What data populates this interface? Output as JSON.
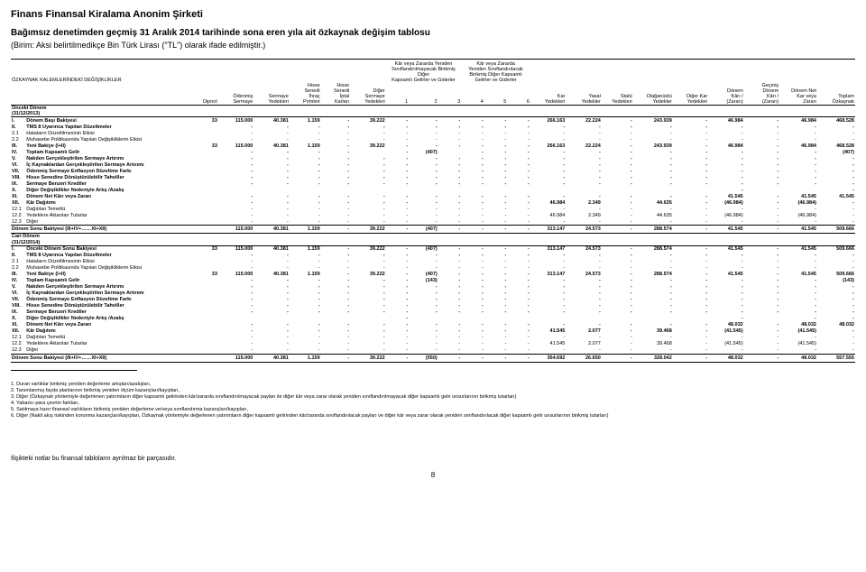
{
  "company": "Finans Finansal Kiralama Anonim Şirketi",
  "title": "Bağımsız denetimden geçmiş 31 Aralık 2014 tarihinde sona eren yıla ait özkaynak değişim tablosu",
  "subtitle": "(Birim: Aksi belirtilmedikçe Bin Türk Lirası (\"TL\") olarak ifade edilmiştir.)",
  "hdr": {
    "ozkalem": "ÖZKAYNAK KALEMLERİNDEKİ DEĞİŞİKLİKLER",
    "g1": "Kâr veya Zararda Yeniden\nSınıflandırılmayacak Birikmiş Diğer\nKapsamlı Gelirler ve Giderler",
    "g2": "Kâr veya Zararda\nYeniden Sınıflandırılacak\nBirikmiş Diğer Kapsamlı\nGelirler ve Giderler",
    "dipnot": "Dipnot",
    "c1": "Ödenmiş\nSermaye",
    "c2": "Sermaye\nYedekleri",
    "c3": "Hisse\nSenedi\nİhraç\nPrimleri",
    "c4": "Hisse\nSenedi\nİptal\nKarları",
    "c5": "Diğer\nSermaye\nYedekleri",
    "c6": "1",
    "c7": "2",
    "c8": "3",
    "c9": "4",
    "c10": "5",
    "c11": "6",
    "c12": "Kar\nYedekleri",
    "c13": "Yasal\nYedekler",
    "c14": "Statü\nYedekleri",
    "c15": "Olağanüstü\nYedekler",
    "c16": "Diğer Kar\nYedekleri",
    "c17": "Dönem\nKârı /\n(Zararı)",
    "c18": "Geçmiş\nDönem\nKârı /\n(Zararı)",
    "c19": "Dönem Net\nKar veya\nZararı",
    "c20": "Toplam\nÖzkaynak",
    "onceki": "Önceki Dönem\n(31/12/2013)",
    "cari": "Cari Dönem\n(31/12/2014)"
  },
  "rowsA": [
    {
      "rn": "I.",
      "lbl": "Dönem Başı Bakiyesi",
      "b": "1",
      "d": "33",
      "v": [
        "115.000",
        "40.381",
        "1.159",
        "-",
        "39.222",
        "-",
        "-",
        "-",
        "-",
        "-",
        "-",
        "266.163",
        "22.224",
        "-",
        "243.939",
        "-",
        "46.984",
        "-",
        "46.984",
        "468.528"
      ]
    },
    {
      "rn": "II.",
      "lbl": "TMS 8 Uyarınca Yapılan Düzeltmeler",
      "b": "1",
      "d": "",
      "v": [
        "-",
        "-",
        "-",
        "-",
        "-",
        "-",
        "-",
        "-",
        "-",
        "-",
        "-",
        "-",
        "-",
        "-",
        "-",
        "-",
        "-",
        "-",
        "-",
        "-"
      ]
    },
    {
      "rn": "2.1",
      "lbl": "Hataların Düzeltilmesinin Etkisi",
      "d": "",
      "v": [
        "-",
        "-",
        "-",
        "-",
        "-",
        "-",
        "-",
        "-",
        "-",
        "-",
        "-",
        "-",
        "-",
        "-",
        "-",
        "-",
        "-",
        "-",
        "-",
        "-"
      ]
    },
    {
      "rn": "2.2",
      "lbl": "Muhasebe Politikasında Yapılan Değişikliklerin Etkisi",
      "d": "",
      "v": [
        "-",
        "-",
        "-",
        "-",
        "-",
        "-",
        "-",
        "-",
        "-",
        "-",
        "-",
        "-",
        "-",
        "-",
        "-",
        "-",
        "-",
        "-",
        "-",
        "-"
      ]
    },
    {
      "rn": "III.",
      "lbl": "Yeni Bakiye (I+II)",
      "b": "1",
      "d": "33",
      "v": [
        "115.000",
        "40.381",
        "1.159",
        "-",
        "39.222",
        "-",
        "-",
        "-",
        "-",
        "-",
        "-",
        "266.163",
        "22.224",
        "-",
        "243.939",
        "-",
        "46.984",
        "-",
        "46.984",
        "468.528"
      ]
    },
    {
      "rn": "IV.",
      "lbl": "Toplam Kapsamlı Gelir",
      "b": "1",
      "d": "",
      "v": [
        "-",
        "-",
        "-",
        "-",
        "",
        "-",
        "(407)",
        "",
        "-",
        "-",
        "-",
        "-",
        "-",
        "-",
        "-",
        "-",
        "-",
        "-",
        "-",
        "(407)"
      ]
    },
    {
      "rn": "V.",
      "lbl": "Nakden Gerçekleştirilen Sermaye Artırımı",
      "b": "1",
      "d": "",
      "v": [
        "-",
        "-",
        "-",
        "-",
        "-",
        "-",
        "-",
        "-",
        "-",
        "-",
        "-",
        "-",
        "-",
        "-",
        "-",
        "-",
        "-",
        "-",
        "-",
        "-"
      ]
    },
    {
      "rn": "VI.",
      "lbl": "İç Kaynaklardan Gerçekleştirilen Sermaye Artırımı",
      "b": "1",
      "d": "",
      "v": [
        "-",
        "-",
        "-",
        "-",
        "-",
        "-",
        "-",
        "-",
        "-",
        "-",
        "-",
        "-",
        "-",
        "-",
        "-",
        "-",
        "-",
        "-",
        "-",
        "-"
      ]
    },
    {
      "rn": "VII.",
      "lbl": "Ödenmiş Sermaye Enflasyon Düzeltme Farkı",
      "b": "1",
      "d": "",
      "v": [
        "-",
        "-",
        "-",
        "-",
        "-",
        "-",
        "-",
        "-",
        "-",
        "-",
        "-",
        "-",
        "-",
        "-",
        "-",
        "-",
        "-",
        "-",
        "-",
        "-"
      ]
    },
    {
      "rn": "VIII.",
      "lbl": "Hisse Senedine Dönüştürülebilir Tahviller",
      "b": "1",
      "d": "",
      "v": [
        "-",
        "-",
        "-",
        "-",
        "-",
        "-",
        "-",
        "-",
        "-",
        "-",
        "-",
        "-",
        "-",
        "-",
        "-",
        "-",
        "-",
        "-",
        "-",
        "-"
      ]
    },
    {
      "rn": "IX.",
      "lbl": "Sermaye Benzeri Krediler",
      "b": "1",
      "d": "",
      "v": [
        "-",
        "-",
        "-",
        "-",
        "-",
        "-",
        "-",
        "-",
        "-",
        "-",
        "-",
        "-",
        "-",
        "-",
        "-",
        "-",
        "-",
        "-",
        "-",
        "-"
      ]
    },
    {
      "rn": "X.",
      "lbl": "Diğer Değişiklikler Nedeniyle Artış /Azalış",
      "b": "1",
      "d": "",
      "v": [
        "",
        "",
        "",
        "",
        "",
        "",
        "",
        "",
        "",
        "",
        "",
        "",
        "",
        "",
        "",
        "",
        "-",
        "",
        "",
        "-"
      ]
    },
    {
      "rn": "XI.",
      "lbl": "Dönem Net Kârı veya Zararı",
      "b": "1",
      "d": "",
      "v": [
        "-",
        "-",
        "-",
        "-",
        "-",
        "-",
        "-",
        "-",
        "-",
        "-",
        "-",
        "-",
        "-",
        "-",
        "-",
        "-",
        "41.545",
        "-",
        "41.545",
        "41.545"
      ]
    },
    {
      "rn": "XII.",
      "lbl": "Kâr Dağıtımı",
      "b": "1",
      "d": "",
      "v": [
        "-",
        "-",
        "-",
        "-",
        "-",
        "-",
        "-",
        "-",
        "-",
        "-",
        "-",
        "46.984",
        "2.349",
        "-",
        "44.635",
        "-",
        "(46.984)",
        "-",
        "(46.984)",
        "-"
      ]
    },
    {
      "rn": "12.1",
      "lbl": "Dağıtılan Temettü",
      "d": "",
      "v": [
        "-",
        "-",
        "-",
        "-",
        "-",
        "-",
        "-",
        "-",
        "-",
        "-",
        "-",
        "-",
        "-",
        "-",
        "-",
        "-",
        "-",
        "-",
        "-",
        "-"
      ]
    },
    {
      "rn": "12.2",
      "lbl": "Yedeklere Aktarılan Tutarlar",
      "d": "",
      "v": [
        "-",
        "-",
        "-",
        "-",
        "-",
        "-",
        "-",
        "-",
        "-",
        "-",
        "-",
        "46.984",
        "2.349",
        "-",
        "44.635",
        "-",
        "(46.984)",
        "-",
        "(46.984)",
        "-"
      ]
    },
    {
      "rn": "12.3",
      "lbl": "Diğer",
      "d": "",
      "v": [
        "-",
        "-",
        "-",
        "-",
        "-",
        "-",
        "-",
        "-",
        "-",
        "-",
        "-",
        "-",
        "-",
        "-",
        "-",
        "-",
        "-",
        "-",
        "-",
        "-"
      ]
    }
  ],
  "totA": {
    "lbl": "Dönem Sonu Bakiyesi (III+IV+……XI+XII)",
    "d": "",
    "v": [
      "115.000",
      "40.381",
      "1.159",
      "-",
      "39.222",
      "-",
      "(407)",
      "-",
      "-",
      "-",
      "-",
      "313.147",
      "24.573",
      "-",
      "288.574",
      "-",
      "41.545",
      "-",
      "41.545",
      "509.666"
    ]
  },
  "rowsB": [
    {
      "rn": "I.",
      "lbl": "Önceki Dönem Sonu Bakiyesi",
      "b": "1",
      "d": "33",
      "v": [
        "115.000",
        "40.381",
        "1.159",
        "-",
        "39.222",
        "-",
        "(407)",
        "-",
        "-",
        "-",
        "-",
        "313.147",
        "24.573",
        "-",
        "288.574",
        "-",
        "41.545",
        "-",
        "41.545",
        "509.666"
      ]
    },
    {
      "rn": "II.",
      "lbl": "TMS 8 Uyarınca Yapılan Düzeltmeler",
      "b": "1",
      "d": "",
      "v": [
        "-",
        "-",
        "-",
        "-",
        "-",
        "-",
        "-",
        "-",
        "-",
        "-",
        "-",
        "-",
        "-",
        "-",
        "-",
        "-",
        "-",
        "-",
        "-",
        "-"
      ]
    },
    {
      "rn": "2.1",
      "lbl": "Hataların Düzeltilmesinin Etkisi",
      "d": "",
      "v": [
        "-",
        "-",
        "-",
        "-",
        "-",
        "-",
        "-",
        "-",
        "-",
        "-",
        "-",
        "-",
        "-",
        "-",
        "-",
        "-",
        "-",
        "-",
        "-",
        "-"
      ]
    },
    {
      "rn": "2.2",
      "lbl": "Muhasebe Politikasında Yapılan Değişikliklerin Etkisi",
      "d": "",
      "v": [
        "-",
        "-",
        "-",
        "-",
        "-",
        "-",
        "-",
        "-",
        "-",
        "-",
        "-",
        "-",
        "-",
        "-",
        "-",
        "-",
        "-",
        "-",
        "-",
        "-"
      ]
    },
    {
      "rn": "III.",
      "lbl": "Yeni Bakiye (I+II)",
      "b": "1",
      "d": "33",
      "v": [
        "115.000",
        "40.381",
        "1.159",
        "-",
        "39.222",
        "-",
        "(407)",
        "-",
        "-",
        "-",
        "-",
        "313.147",
        "24.573",
        "-",
        "288.574",
        "-",
        "41.545",
        "-",
        "41.545",
        "509.666"
      ]
    },
    {
      "rn": "IV.",
      "lbl": "Toplam Kapsamlı Gelir",
      "b": "1",
      "d": "",
      "v": [
        "-",
        "-",
        "-",
        "-",
        "-",
        "-",
        "(143)",
        "-",
        "-",
        "-",
        "-",
        "-",
        "-",
        "-",
        "-",
        "-",
        "-",
        "-",
        "-",
        "(143)"
      ]
    },
    {
      "rn": "V.",
      "lbl": "Nakden Gerçekleştirilen Sermaye Artırımı",
      "b": "1",
      "d": "",
      "v": [
        "-",
        "-",
        "-",
        "-",
        "-",
        "-",
        "-",
        "-",
        "-",
        "-",
        "-",
        "-",
        "-",
        "-",
        "-",
        "-",
        "-",
        "-",
        "-",
        "-"
      ]
    },
    {
      "rn": "VI.",
      "lbl": "İç Kaynaklardan Gerçekleştirilen Sermaye Artırımı",
      "b": "1",
      "d": "",
      "v": [
        "-",
        "-",
        "-",
        "-",
        "-",
        "-",
        "-",
        "-",
        "-",
        "-",
        "-",
        "-",
        "-",
        "-",
        "-",
        "-",
        "-",
        "-",
        "-",
        "-"
      ]
    },
    {
      "rn": "VII.",
      "lbl": "Ödenmiş Sermaye Enflasyon Düzeltme Farkı",
      "b": "1",
      "d": "",
      "v": [
        "-",
        "-",
        "-",
        "-",
        "-",
        "-",
        "-",
        "-",
        "-",
        "-",
        "-",
        "-",
        "-",
        "-",
        "-",
        "-",
        "-",
        "-",
        "-",
        "-"
      ]
    },
    {
      "rn": "VIII.",
      "lbl": "Hisse Senedine Dönüştürülebilir Tahviller",
      "b": "1",
      "d": "",
      "v": [
        "-",
        "-",
        "-",
        "-",
        "-",
        "-",
        "-",
        "-",
        "-",
        "-",
        "-",
        "-",
        "-",
        "-",
        "-",
        "-",
        "-",
        "-",
        "-",
        "-"
      ]
    },
    {
      "rn": "IX.",
      "lbl": "Sermaye Benzeri Krediler",
      "b": "1",
      "d": "",
      "v": [
        "-",
        "-",
        "-",
        "-",
        "-",
        "-",
        "-",
        "-",
        "-",
        "-",
        "-",
        "-",
        "-",
        "-",
        "-",
        "-",
        "-",
        "-",
        "-",
        "-"
      ]
    },
    {
      "rn": "X.",
      "lbl": "Diğer Değişiklikler Nedeniyle Artış /Azalış",
      "b": "1",
      "d": "",
      "v": [
        "",
        "",
        "",
        "",
        "",
        "-",
        "",
        "",
        "",
        "",
        "",
        "",
        "",
        "",
        "",
        "",
        "-",
        "",
        "-",
        "-"
      ]
    },
    {
      "rn": "XI.",
      "lbl": "Dönem Net Kârı veya Zararı",
      "b": "1",
      "d": "",
      "v": [
        "-",
        "-",
        "-",
        "-",
        "-",
        "-",
        "-",
        "-",
        "-",
        "-",
        "-",
        "-",
        "-",
        "-",
        "-",
        "-",
        "48.032",
        "-",
        "48.032",
        "48.032"
      ]
    },
    {
      "rn": "XII.",
      "lbl": "Kâr Dağıtımı",
      "b": "1",
      "d": "",
      "v": [
        "-",
        "-",
        "-",
        "-",
        "-",
        "-",
        "-",
        "-",
        "-",
        "-",
        "-",
        "41.545",
        "2.077",
        "-",
        "39.468",
        "-",
        "(41.545)",
        "-",
        "(41.545)",
        "-"
      ]
    },
    {
      "rn": "12.1",
      "lbl": "Dağıtılan Temettü",
      "d": "",
      "v": [
        "-",
        "-",
        "-",
        "-",
        "-",
        "-",
        "-",
        "-",
        "-",
        "-",
        "-",
        "-",
        "-",
        "-",
        "-",
        "-",
        "-",
        "-",
        "-",
        "-"
      ]
    },
    {
      "rn": "12.2",
      "lbl": "Yedeklere Aktarılan Tutarlar",
      "d": "",
      "v": [
        "-",
        "-",
        "-",
        "-",
        "-",
        "-",
        "-",
        "-",
        "-",
        "-",
        "-",
        "41.545",
        "2.077",
        "-",
        "39.468",
        "-",
        "(41.545)",
        "-",
        "(41.545)",
        "-"
      ]
    },
    {
      "rn": "12.3",
      "lbl": "Diğer",
      "d": "",
      "v": [
        "-",
        "-",
        "-",
        "-",
        "-",
        "-",
        "-",
        "-",
        "-",
        "-",
        "-",
        "-",
        "-",
        "-",
        "-",
        "-",
        "-",
        "-",
        "-",
        "-"
      ]
    }
  ],
  "totB": {
    "lbl": "Dönem Sonu Bakiyesi (III+IV+……XI+XII)",
    "d": "",
    "v": [
      "115.000",
      "40.381",
      "1.159",
      "-",
      "39.222",
      "-",
      "(550)",
      "-",
      "-",
      "-",
      "-",
      "354.692",
      "26.650",
      "-",
      "328.042",
      "-",
      "48.032",
      "-",
      "48.032",
      "557.555"
    ]
  },
  "footnotes": [
    "1. Duran varlıklar birikmiş yeniden değerleme artışları/azalışları,",
    "2. Tanımlanmış fayda planlarının birikmiş yeniden ölçüm kazançları/kayıpları,",
    "3. Diğer (Özkaynak yöntemiyle değerlenen yatırımların diğer kapsamlı gelirinden kâr/zararda sınıflandırılmayacak payları ile diğer kâr veya zarar olarak yeniden sınıflandırılmayacak diğer kapsamlı gelir unsurlarının birikmiş tutarları)",
    "4. Yabancı para çevrim farkları,",
    "5. Satılmaya hazır finansal varlıkların birikmiş yeniden değerleme ve/veya sınıflandırma kazançları/kayıpları,",
    "6. Diğer (Nakit akış riskinden korunma kazançları/kayıpları, Özkaynak yöntemiyle değerlenen yatırımların diğer kapsamlı gelirinden kâr/zararda sınıflandırılacak payları ve diğer kâr veya zarar olarak yeniden sınıflandırılacak diğer kapsamlı gelir unsurlarının birikmiş tutarları)"
  ],
  "footer": "İlişikteki notlar bu finansal tabloların ayrılmaz bir parçasıdır.",
  "page": "8",
  "colw": [
    "14px",
    "160px",
    "24px",
    "34px",
    "34px",
    "30px",
    "28px",
    "34px",
    "22px",
    "28px",
    "22px",
    "22px",
    "22px",
    "22px",
    "34px",
    "34px",
    "30px",
    "38px",
    "34px",
    "34px",
    "34px",
    "36px",
    "36px"
  ]
}
